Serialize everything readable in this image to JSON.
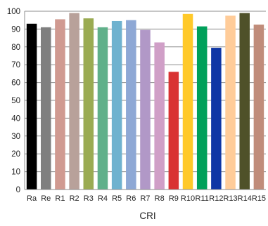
{
  "chart_data": {
    "type": "bar",
    "categories": [
      "Ra",
      "Re",
      "R1",
      "R2",
      "R3",
      "R4",
      "R5",
      "R6",
      "R7",
      "R8",
      "R9",
      "R10",
      "R11",
      "R12",
      "R13",
      "R14",
      "R15"
    ],
    "values": [
      93,
      91,
      95.5,
      99,
      96,
      91,
      94.5,
      95,
      89.5,
      82.5,
      66,
      98.5,
      91.5,
      79.5,
      97.5,
      99,
      92.5
    ],
    "colors": [
      "#000000",
      "#7f7f7f",
      "#d09a91",
      "#b8a19a",
      "#9aab52",
      "#60b08a",
      "#6fb2cf",
      "#8ea8d5",
      "#b198c7",
      "#d09fc7",
      "#d93232",
      "#ffc929",
      "#00a05a",
      "#0f36a5",
      "#ffcc99",
      "#4f5129",
      "#c08c7a"
    ],
    "title": "",
    "xlabel": "CRI",
    "ylabel": "",
    "ylim": [
      0,
      100
    ],
    "yticks": [
      "0",
      "10",
      "20",
      "30",
      "40",
      "50",
      "60",
      "70",
      "80",
      "90",
      "100"
    ],
    "grid": true,
    "legend": "none"
  }
}
